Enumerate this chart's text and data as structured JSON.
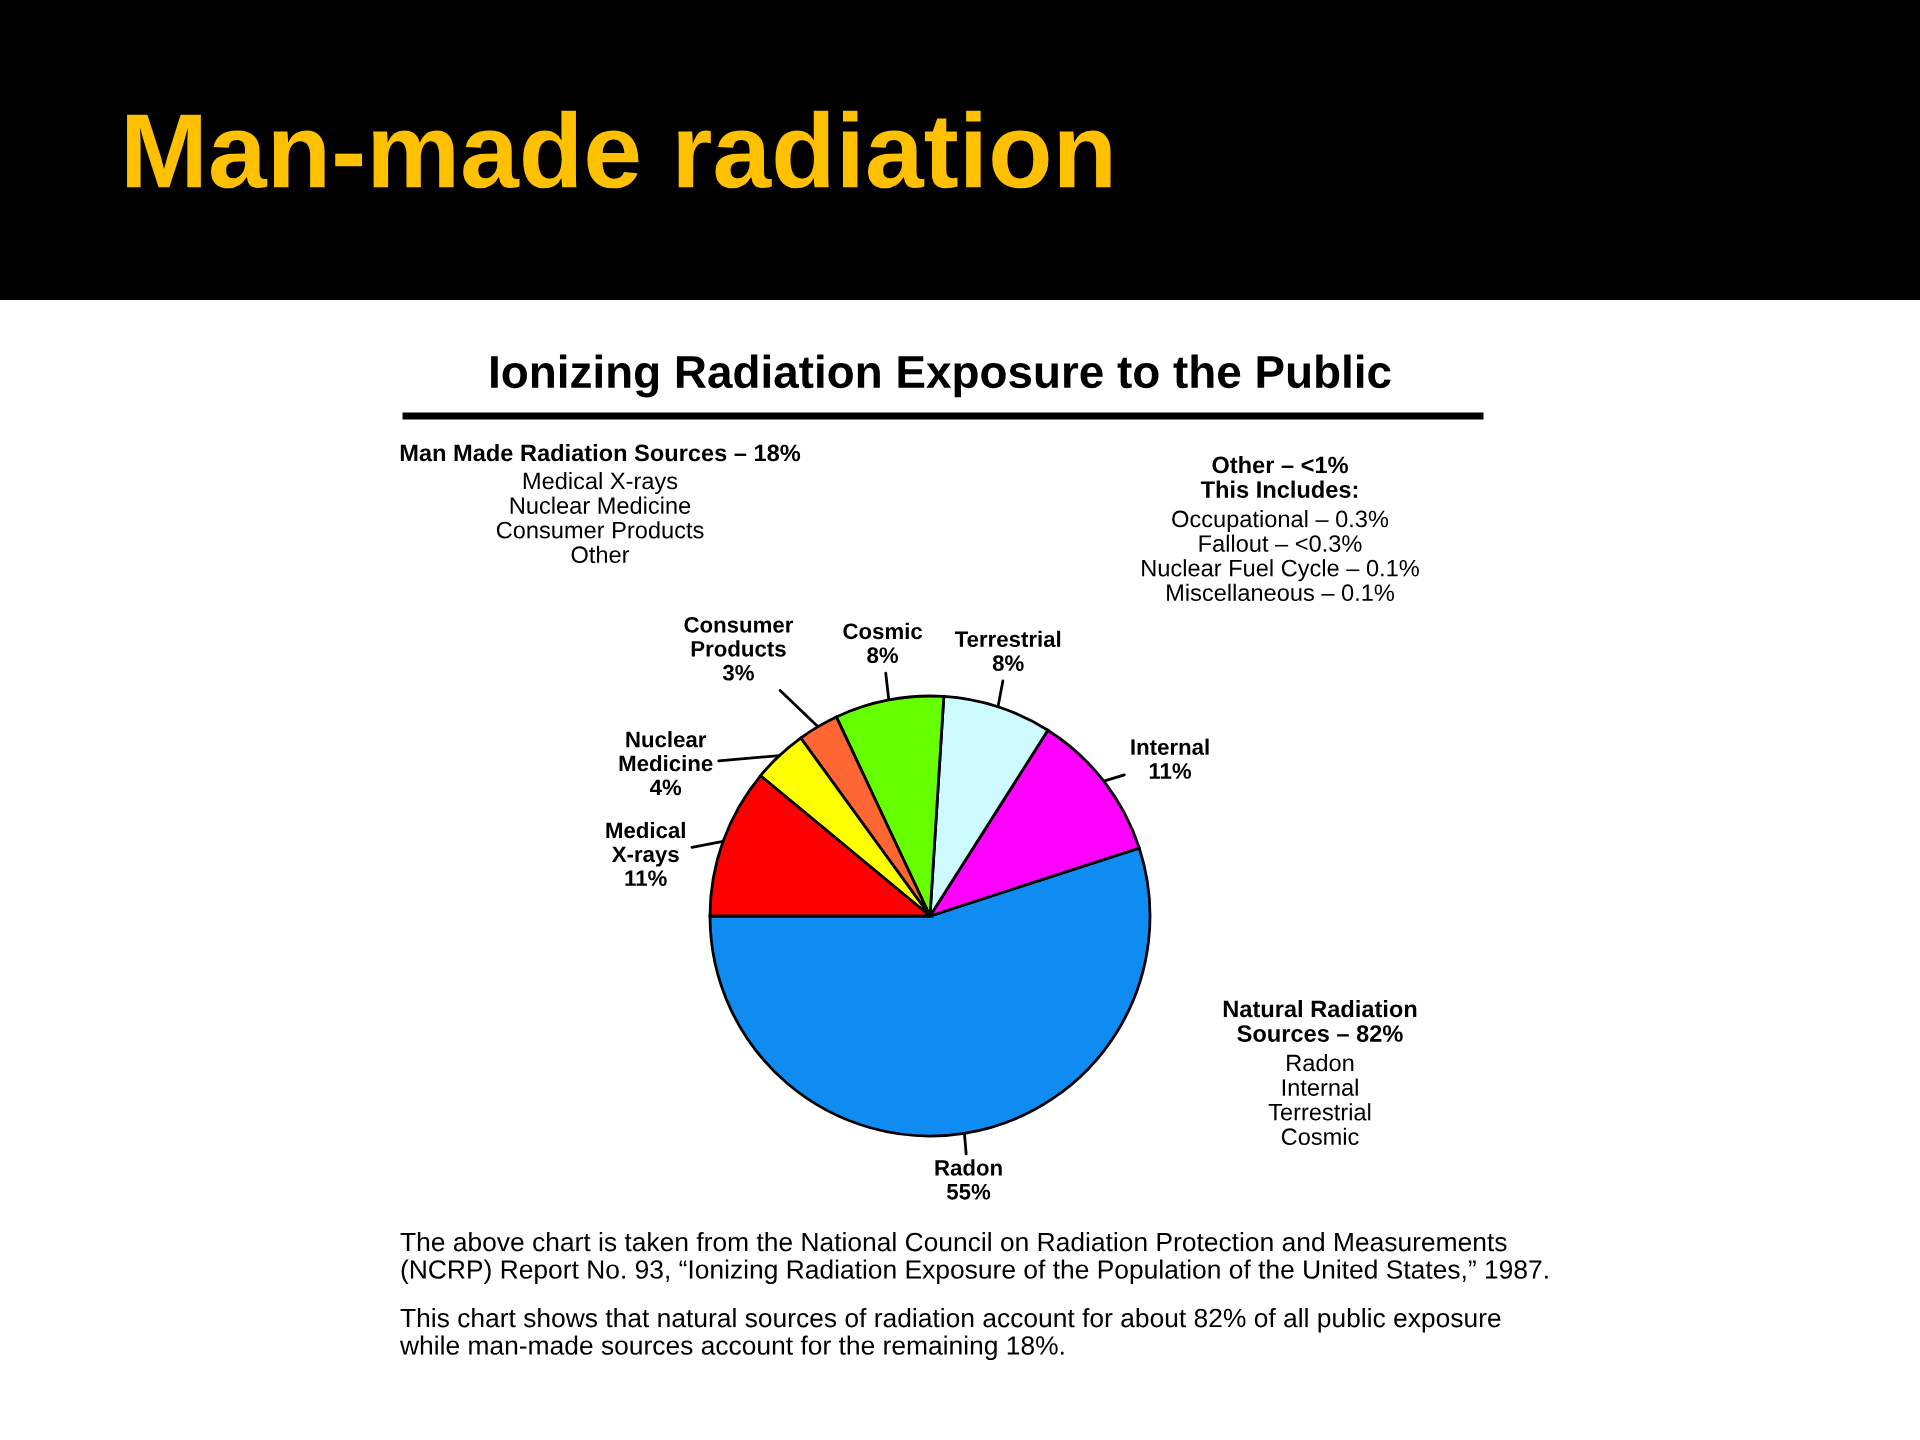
{
  "chart_data": {
    "type": "pie",
    "title": "Man-made radiation",
    "subtitle": "Ionizing Radiation Exposure to the Public",
    "categories": [
      "Radon",
      "Internal",
      "Terrestrial",
      "Cosmic",
      "Consumer\nProducts",
      "Nuclear\nMedicine",
      "Medical\nX-rays"
    ],
    "values": [
      55,
      11,
      8,
      8,
      3,
      4,
      11
    ],
    "value_labels": [
      "55%",
      "11%",
      "8%",
      "8%",
      "3%",
      "4%",
      "11%"
    ],
    "colors": [
      "#0f8cf2",
      "#ff00ff",
      "#ccfaff",
      "#66ff00",
      "#ff6633",
      "#ffff00",
      "#ff0000"
    ],
    "annotations": [
      "Man Made Radiation Sources – 18%",
      "Medical X-rays\nNuclear Medicine\nConsumer Products\nOther",
      "Other – <1%\nThis Includes:",
      "Occupational – 0.3%\nFallout – <0.3%\nNuclear Fuel Cycle – 0.1%\nMiscellaneous – 0.1%",
      "Natural Radiation\nSources – 82%",
      "Radon\nInternal\nTerrestrial\nCosmic",
      "The above chart is taken from the National Council on Radiation Protection and Measurements\n(NCRP) Report No. 93, “Ionizing Radiation Exposure of the Population of the United States,” 1987.",
      "This chart shows that natural sources of radiation account for about 82% of all public exposure\nwhile man-made sources account for the remaining 18%."
    ]
  }
}
